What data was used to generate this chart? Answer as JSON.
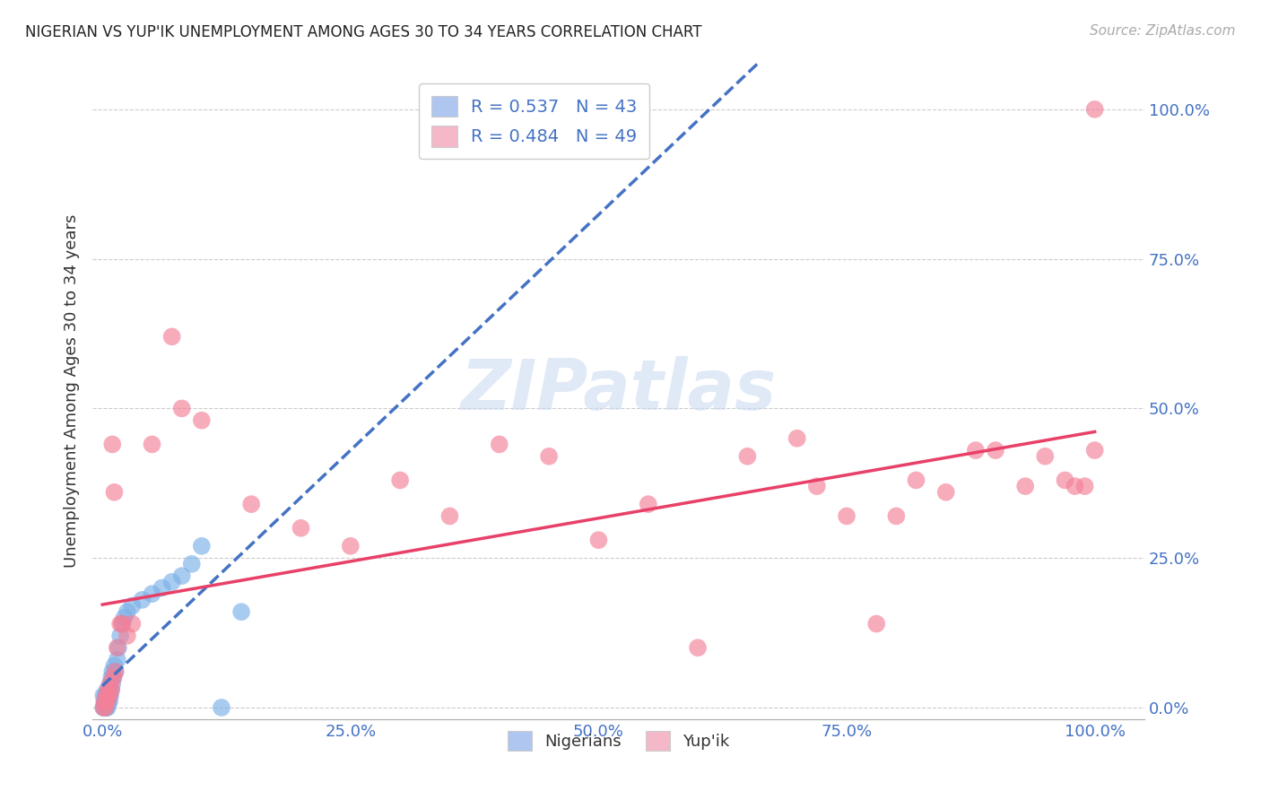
{
  "title": "NIGERIAN VS YUP'IK UNEMPLOYMENT AMONG AGES 30 TO 34 YEARS CORRELATION CHART",
  "source": "Source: ZipAtlas.com",
  "ylabel": "Unemployment Among Ages 30 to 34 years",
  "ytick_labels": [
    "0.0%",
    "25.0%",
    "50.0%",
    "75.0%",
    "100.0%"
  ],
  "ytick_values": [
    0.0,
    0.25,
    0.5,
    0.75,
    1.0
  ],
  "xtick_labels": [
    "0.0%",
    "25.0%",
    "50.0%",
    "75.0%",
    "100.0%"
  ],
  "xtick_values": [
    0.0,
    0.25,
    0.5,
    0.75,
    1.0
  ],
  "legend_label1": "R = 0.537   N = 43",
  "legend_label2": "R = 0.484   N = 49",
  "legend_color1": "#aec6f0",
  "legend_color2": "#f4b8c8",
  "nigerian_color": "#7ab0e8",
  "yupik_color": "#f48098",
  "nigerian_line_color": "#4472c4",
  "yupik_line_color": "#e84068",
  "watermark_color": "#c8d8f0",
  "nigerian_x": [
    0.001,
    0.001,
    0.002,
    0.002,
    0.003,
    0.003,
    0.003,
    0.004,
    0.004,
    0.004,
    0.005,
    0.005,
    0.005,
    0.006,
    0.006,
    0.007,
    0.007,
    0.007,
    0.008,
    0.008,
    0.009,
    0.009,
    0.01,
    0.01,
    0.011,
    0.012,
    0.013,
    0.015,
    0.016,
    0.018,
    0.02,
    0.022,
    0.025,
    0.03,
    0.04,
    0.05,
    0.06,
    0.07,
    0.08,
    0.09,
    0.1,
    0.12,
    0.14
  ],
  "nigerian_y": [
    0.0,
    0.02,
    0.0,
    0.01,
    0.0,
    0.01,
    0.02,
    0.0,
    0.01,
    0.02,
    0.0,
    0.01,
    0.03,
    0.01,
    0.02,
    0.01,
    0.02,
    0.03,
    0.02,
    0.04,
    0.03,
    0.05,
    0.04,
    0.06,
    0.05,
    0.07,
    0.06,
    0.08,
    0.1,
    0.12,
    0.14,
    0.15,
    0.16,
    0.17,
    0.18,
    0.19,
    0.2,
    0.21,
    0.22,
    0.24,
    0.27,
    0.0,
    0.16
  ],
  "yupik_x": [
    0.001,
    0.002,
    0.003,
    0.004,
    0.005,
    0.006,
    0.007,
    0.008,
    0.009,
    0.01,
    0.011,
    0.012,
    0.013,
    0.015,
    0.018,
    0.02,
    0.025,
    0.03,
    0.05,
    0.07,
    0.08,
    0.1,
    0.15,
    0.2,
    0.25,
    0.3,
    0.35,
    0.4,
    0.45,
    0.5,
    0.55,
    0.6,
    0.65,
    0.7,
    0.72,
    0.75,
    0.78,
    0.8,
    0.82,
    0.85,
    0.88,
    0.9,
    0.93,
    0.95,
    0.97,
    0.98,
    0.99,
    1.0,
    1.0
  ],
  "yupik_y": [
    0.0,
    0.01,
    0.0,
    0.02,
    0.01,
    0.03,
    0.02,
    0.04,
    0.03,
    0.44,
    0.05,
    0.36,
    0.06,
    0.1,
    0.14,
    0.14,
    0.12,
    0.14,
    0.44,
    0.62,
    0.5,
    0.48,
    0.34,
    0.3,
    0.27,
    0.38,
    0.32,
    0.44,
    0.42,
    0.28,
    0.34,
    0.1,
    0.42,
    0.45,
    0.37,
    0.32,
    0.14,
    0.32,
    0.38,
    0.36,
    0.43,
    0.43,
    0.37,
    0.42,
    0.38,
    0.37,
    0.37,
    0.43,
    1.0
  ]
}
